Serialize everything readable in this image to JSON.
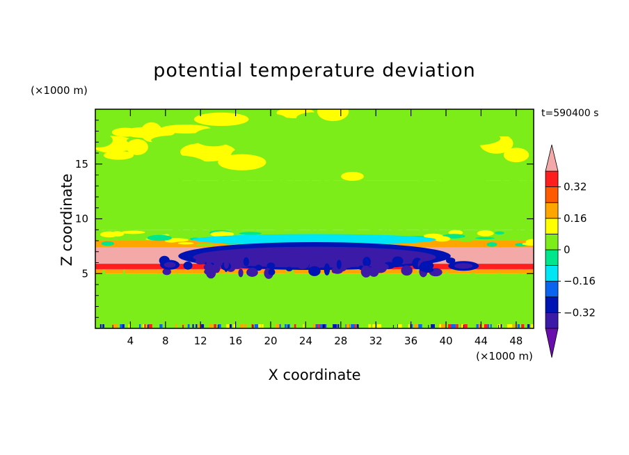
{
  "chart_data": {
    "type": "heatmap",
    "title": "potential temperature deviation",
    "xlabel": "X coordinate",
    "ylabel": "Z coordinate",
    "x_unit": "(×1000 m)",
    "y_unit": "(×1000 m)",
    "time_label": "t=590400 s",
    "xlim": [
      0,
      50
    ],
    "ylim": [
      0,
      20
    ],
    "x_ticks": [
      4,
      8,
      12,
      16,
      20,
      24,
      28,
      32,
      36,
      40,
      44,
      48
    ],
    "y_ticks": [
      5,
      10,
      15
    ],
    "colorbar": {
      "levels": [
        -0.4,
        -0.32,
        -0.24,
        -0.16,
        -0.08,
        0,
        0.08,
        0.16,
        0.24,
        0.32,
        0.4
      ],
      "colors": [
        "#6a0dad",
        "#3c1aa8",
        "#0014b4",
        "#0a64f0",
        "#00e6f5",
        "#00e68c",
        "#7ded1a",
        "#ffff00",
        "#ffa500",
        "#ff5a00",
        "#ff1e1e",
        "#f4a9a9"
      ],
      "labels": [
        "0.32",
        "0.16",
        "0",
        "−0.16",
        "−0.32"
      ],
      "label_values": [
        0.32,
        0.16,
        0,
        -0.16,
        -0.32
      ],
      "extend": "both"
    },
    "bands": [
      {
        "z": [
          0.0,
          5.0
        ],
        "value": 0.02
      },
      {
        "z": [
          5.0,
          5.4
        ],
        "value": 0.2
      },
      {
        "z": [
          5.4,
          5.9
        ],
        "value": 0.36
      },
      {
        "z": [
          5.9,
          7.4
        ],
        "value": 0.42
      },
      {
        "z": [
          7.4,
          8.0
        ],
        "value": 0.2
      },
      {
        "z": [
          8.0,
          9.0
        ],
        "value": 0.06
      },
      {
        "z": [
          9.0,
          13.5
        ],
        "value": 0.03
      },
      {
        "z": [
          13.5,
          20.0
        ],
        "value": 0.06
      }
    ],
    "cold_anomaly": {
      "x": [
        4.0,
        46.0
      ],
      "z": [
        4.8,
        7.4
      ],
      "min_value": -0.36
    }
  }
}
